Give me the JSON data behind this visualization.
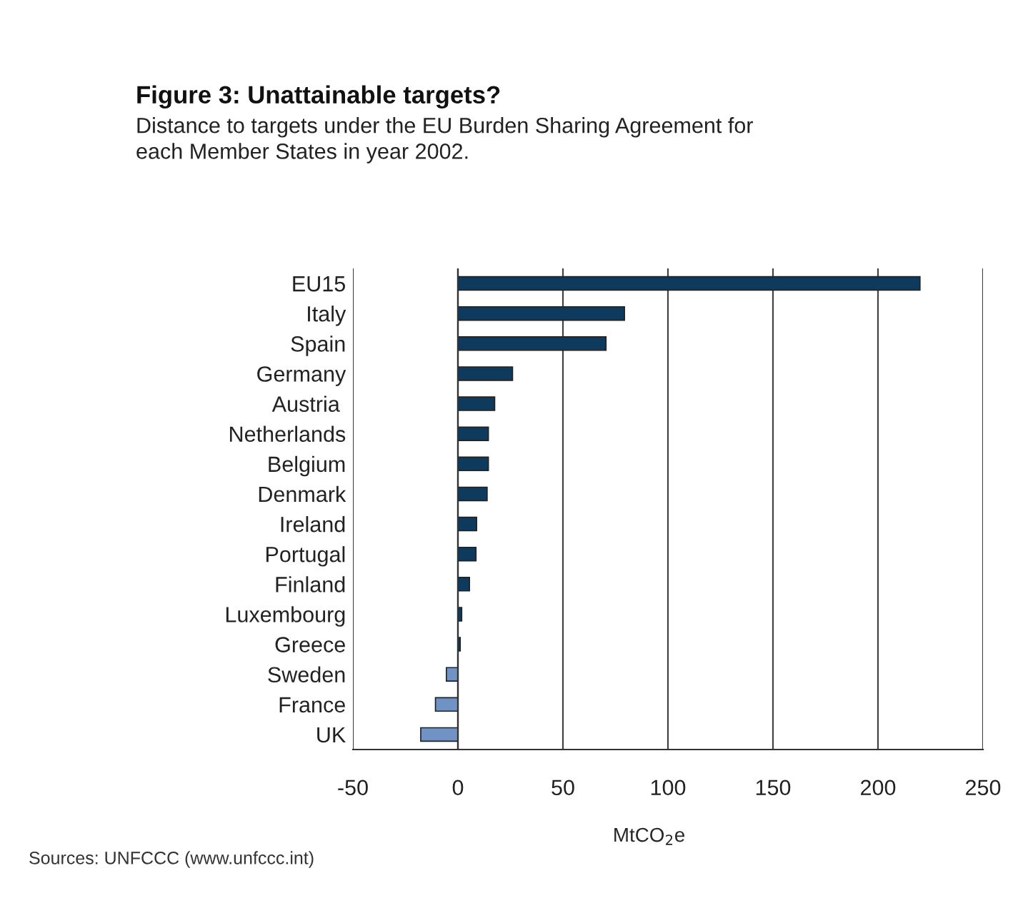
{
  "chart_data": {
    "type": "bar",
    "orientation": "horizontal",
    "title": "Figure 3: Unattainable targets?",
    "subtitle": "Distance to targets under the EU Burden Sharing Agreement for\neach Member States in year 2002.",
    "xlabel": "MtCO$_{2}$e",
    "categories": [
      "EU15",
      "Italy",
      "Spain",
      "Germany",
      "Austria ",
      "Netherlands",
      "Belgium",
      "Denmark",
      "Ireland",
      "Portugal",
      "Finland",
      "Luxembourg",
      "Greece",
      "Sweden",
      "France",
      "UK"
    ],
    "values": [
      220,
      79.3,
      70.5,
      26,
      17.5,
      14.5,
      14.5,
      13.9,
      8.9,
      8.6,
      5.5,
      1.8,
      1.1,
      -5.5,
      -10.7,
      -17.7
    ],
    "colors": [
      "#0e3a5e",
      "#0e3a5e",
      "#0e3a5e",
      "#0e3a5e",
      "#0e3a5e",
      "#0e3a5e",
      "#0e3a5e",
      "#0e3a5e",
      "#0e3a5e",
      "#0e3a5e",
      "#0e3a5e",
      "#0e3a5e",
      "#0e3a5e",
      "#7092c4",
      "#7092c4",
      "#7092c4"
    ],
    "xlim": [
      -50,
      250
    ],
    "xticks": [
      -50,
      0,
      50,
      100,
      150,
      200,
      250
    ],
    "grid": "x",
    "annotations": [
      "Sources: UNFCCC (www.unfccc.int)"
    ]
  }
}
